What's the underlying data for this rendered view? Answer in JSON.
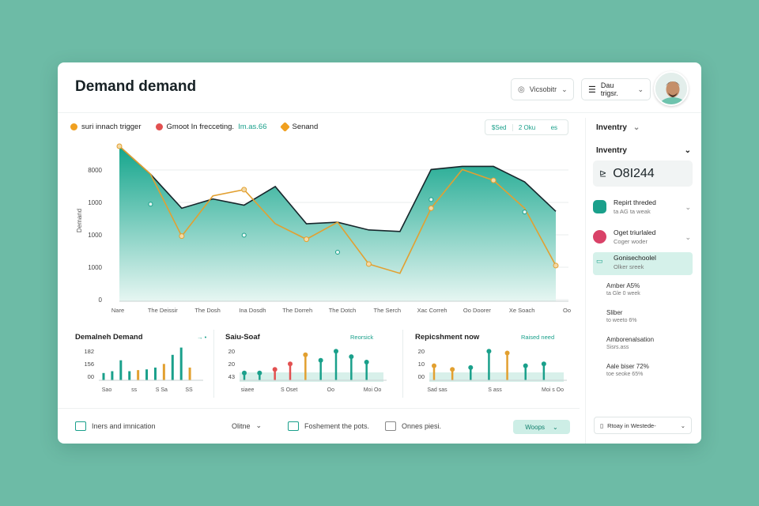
{
  "header": {
    "title": "Demand demand",
    "view_label": "Vicsobitr",
    "trigger_label": "Dau trigsr."
  },
  "main": {
    "legend": [
      {
        "label": "suri innach trigger",
        "color": "#f0a020"
      },
      {
        "label": "Gmoot In frecceting.",
        "extra": "Im.as.66",
        "color": "#e25050"
      },
      {
        "label": "Senand",
        "color": "#f0a020"
      }
    ],
    "seg": {
      "a": "$Sed",
      "b": "2 Oku",
      "c": "es"
    }
  },
  "chart_data": {
    "type": "area",
    "y_ticks": [
      "8000",
      "1000",
      "1000",
      "1000",
      "0"
    ],
    "ylabel": "Demand",
    "x_ticks": [
      "Nare",
      "The Deissir",
      "The Dosh",
      "Ina Dosdh",
      "The Dorreh",
      "The Dotch",
      "The Serch",
      "Xac Correh",
      "Oo Doorer",
      "Xe Soach",
      "Oo"
    ],
    "series": [
      {
        "color": "#1aa08b",
        "values": [
          100,
          82,
          60,
          66,
          62,
          74,
          50,
          51,
          46,
          45,
          85,
          87,
          87,
          77,
          58
        ]
      },
      {
        "color": "#e2a030",
        "values": [
          100,
          82,
          42,
          68,
          72,
          50,
          40,
          51,
          24,
          18,
          60,
          85,
          78,
          60,
          23
        ]
      }
    ]
  },
  "minis": [
    {
      "title": "Demalneh Demand",
      "sub": "",
      "y_ticks": [
        "182",
        "156",
        "00"
      ],
      "x_ticks": [
        "Sao",
        "ss",
        "S Sa",
        "SS"
      ],
      "bars": [
        {
          "v": 0.2,
          "c": "#1aa08b"
        },
        {
          "v": 0.25,
          "c": "#1aa08b"
        },
        {
          "v": 0.55,
          "c": "#1aa08b"
        },
        {
          "v": 0.25,
          "c": "#1aa08b"
        },
        {
          "v": 0.28,
          "c": "#e2a030"
        },
        {
          "v": 0.3,
          "c": "#1aa08b"
        },
        {
          "v": 0.35,
          "c": "#1aa08b"
        },
        {
          "v": 0.45,
          "c": "#e2a030"
        },
        {
          "v": 0.7,
          "c": "#1aa08b"
        },
        {
          "v": 0.9,
          "c": "#1aa08b"
        },
        {
          "v": 0.35,
          "c": "#e2a030"
        }
      ]
    },
    {
      "title": "Saiu-Soaf",
      "sub": "Reorsick",
      "y_ticks": [
        "20",
        "20",
        "43"
      ],
      "x_ticks": [
        "siaee",
        "S Oset",
        "Oo",
        "Moi Oo"
      ],
      "bars": [
        {
          "v": 0.2,
          "c": "#1aa08b"
        },
        {
          "v": 0.2,
          "c": "#1aa08b"
        },
        {
          "v": 0.3,
          "c": "#e25050"
        },
        {
          "v": 0.45,
          "c": "#e25050"
        },
        {
          "v": 0.7,
          "c": "#e2a030"
        },
        {
          "v": 0.55,
          "c": "#1aa08b"
        },
        {
          "v": 0.8,
          "c": "#1aa08b"
        },
        {
          "v": 0.65,
          "c": "#1aa08b"
        },
        {
          "v": 0.5,
          "c": "#1aa08b"
        }
      ]
    },
    {
      "title": "Repicshment now",
      "sub": "Raised need",
      "y_ticks": [
        "20",
        "10",
        "00"
      ],
      "x_ticks": [
        "Sad sas",
        "S ass",
        "Moi s Oo"
      ],
      "bars": [
        {
          "v": 0.4,
          "c": "#e2a030"
        },
        {
          "v": 0.3,
          "c": "#e2a030"
        },
        {
          "v": 0.35,
          "c": "#1aa08b"
        },
        {
          "v": 0.8,
          "c": "#1aa08b"
        },
        {
          "v": 0.75,
          "c": "#e2a030"
        },
        {
          "v": 0.4,
          "c": "#1aa08b"
        },
        {
          "v": 0.45,
          "c": "#1aa08b"
        }
      ]
    }
  ],
  "footer": {
    "item1": "Iners and imnication",
    "item2": "Olitne",
    "item3": "Foshement the pots.",
    "item4": "Onnes piesi.",
    "button": "Woops"
  },
  "sidebar": {
    "head1": "Inventry",
    "head2": "Inventry",
    "value": "O8I244",
    "rows": [
      {
        "t1": "Repirt threded",
        "t2": "ta AG ta weak",
        "color": "#1aa08b"
      },
      {
        "t1": "Oget triurlaled",
        "t2": "Coger woder",
        "color": "#d94268"
      },
      {
        "t1": "Gonisechoolel",
        "t2": "Olker sreek",
        "color": "#1aa08b"
      }
    ],
    "minis": [
      {
        "t": "Amber A5%",
        "s": "ta Gle 0 week"
      },
      {
        "t": "Sliber",
        "s": "to weeto 6%"
      },
      {
        "t": "Amborenalsation",
        "s": "Sisrs.ass"
      },
      {
        "t": "Aale biser 72%",
        "s": "toe seoke 65%"
      }
    ],
    "foot": "Rtoay in Westede-"
  }
}
